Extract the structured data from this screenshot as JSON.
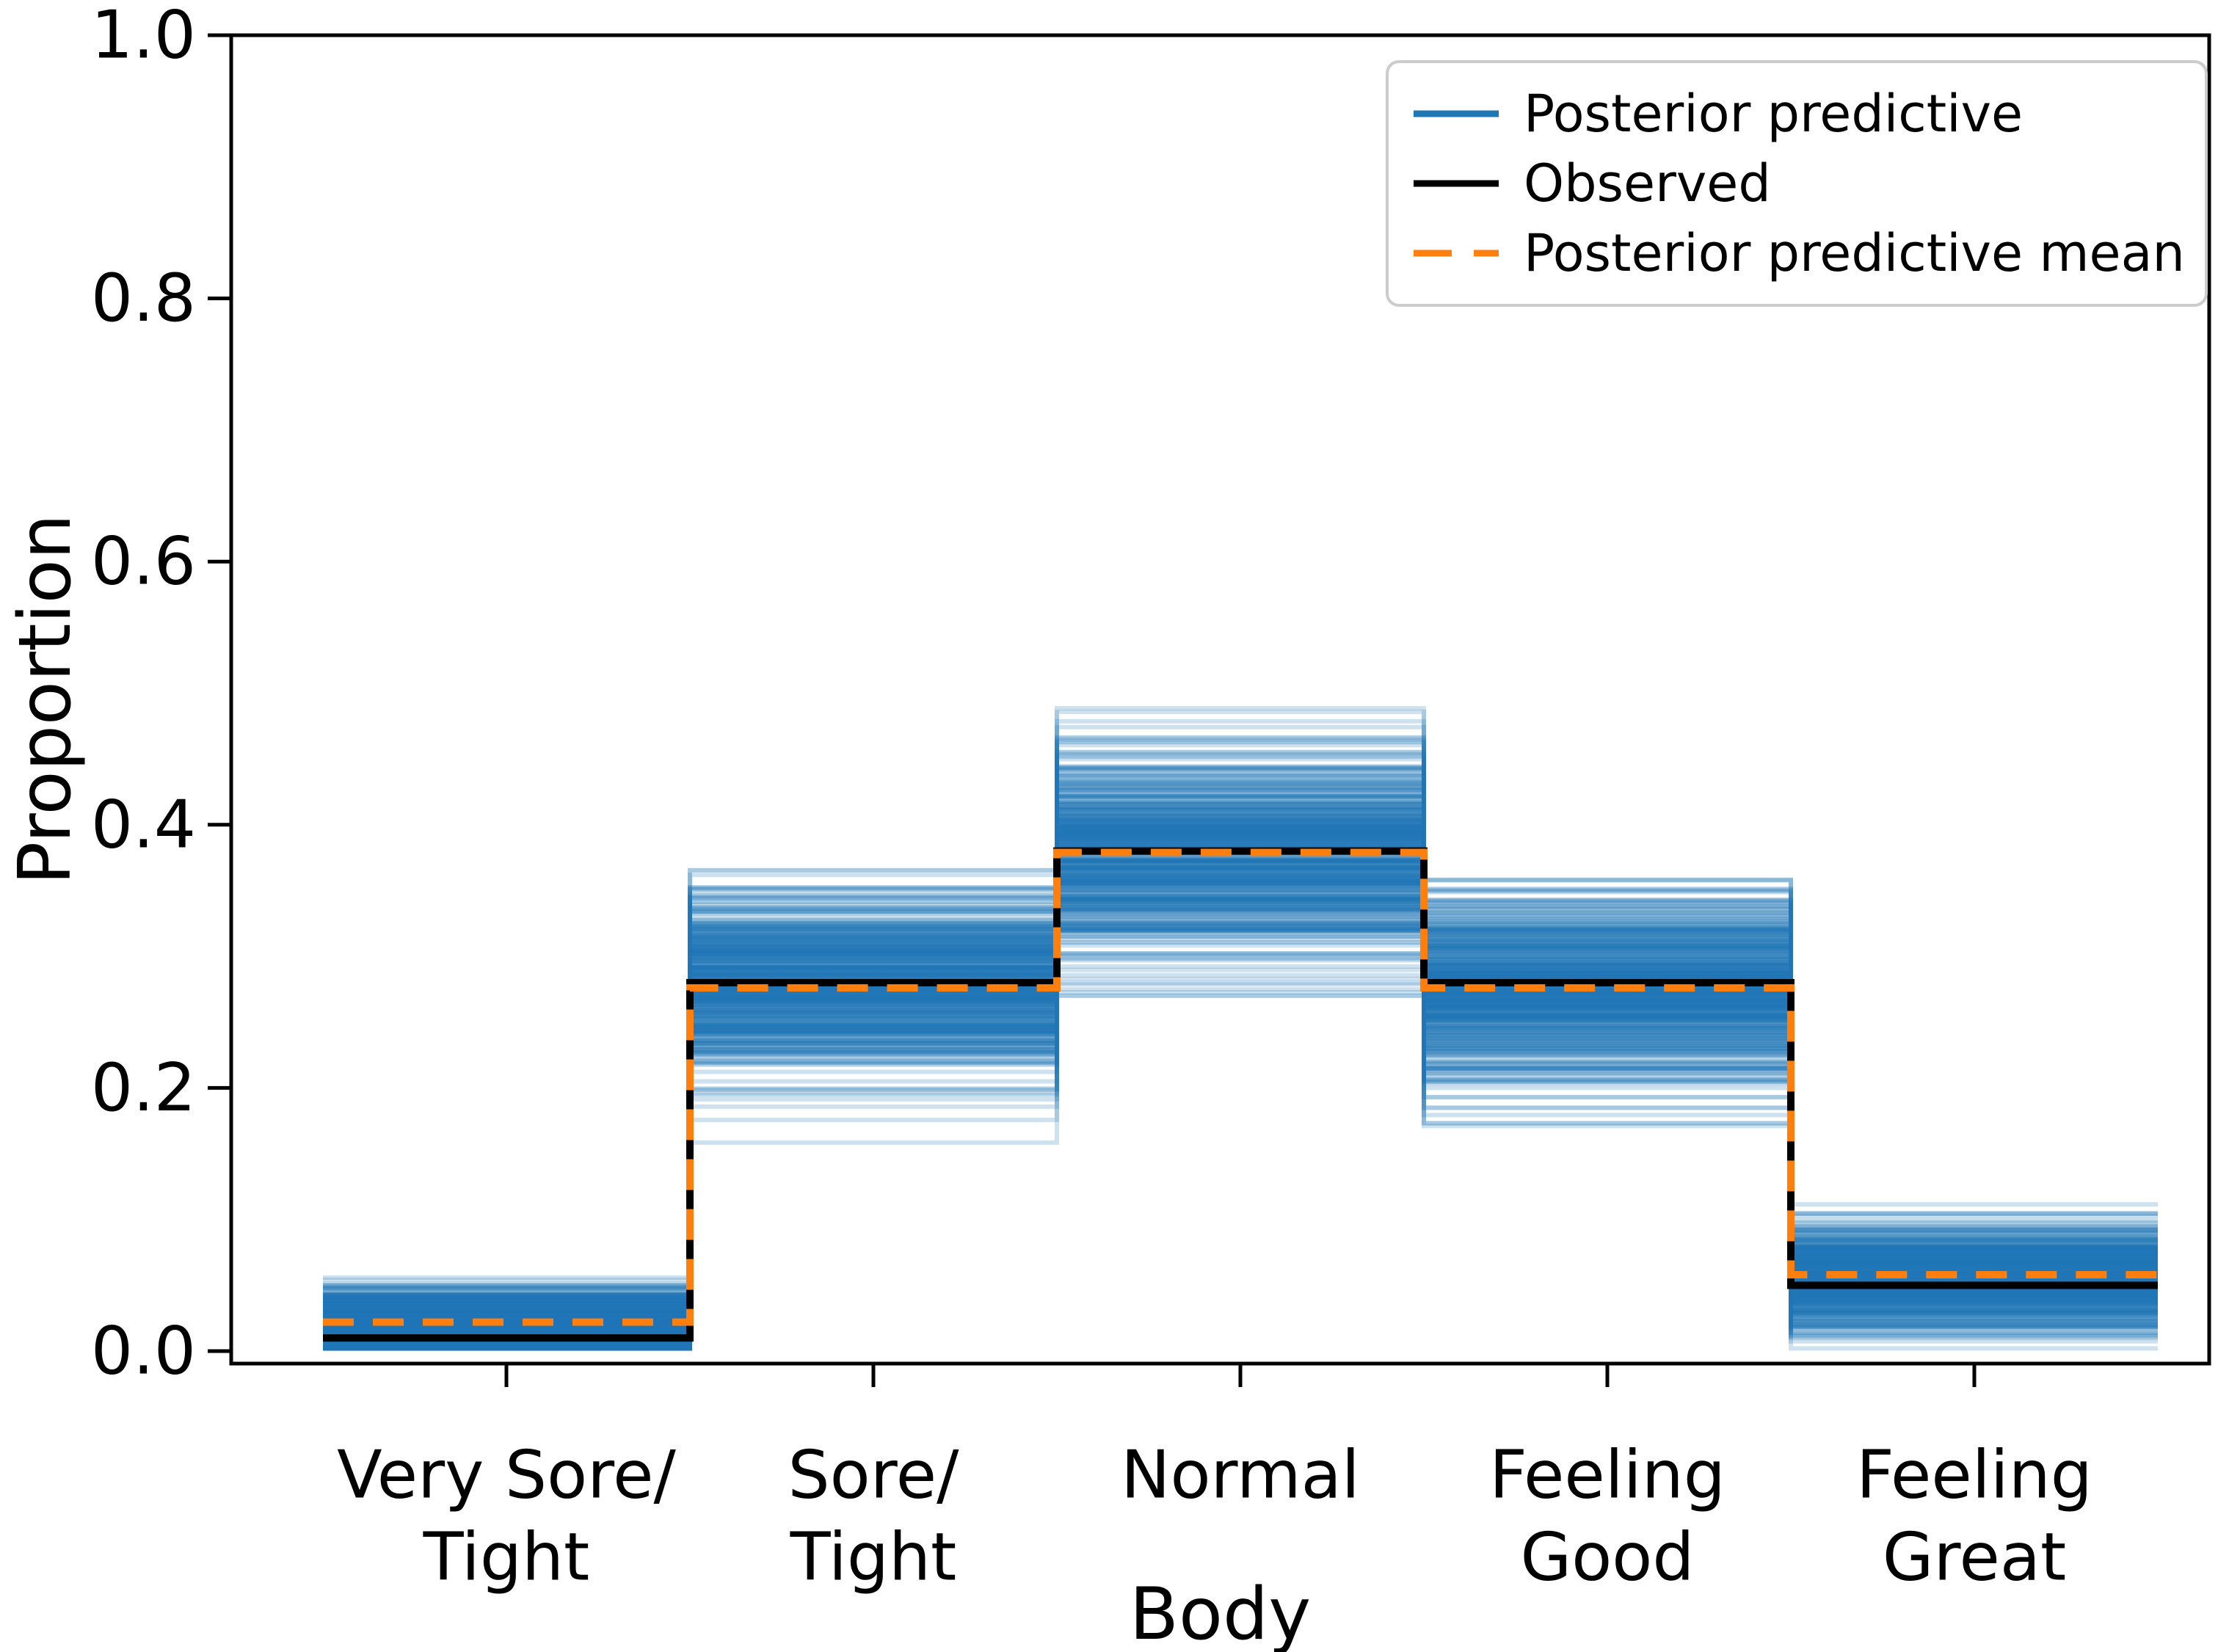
{
  "axes": {
    "xlabel": "Body",
    "ylabel": "Proportion",
    "ytick_labels": [
      "0.0",
      "0.2",
      "0.4",
      "0.6",
      "0.8",
      "1.0"
    ],
    "ytick_values": [
      0.0,
      0.2,
      0.4,
      0.6,
      0.8,
      1.0
    ],
    "ylim": [
      -0.0095,
      1.0
    ],
    "spine_color": "#000000",
    "background": "#ffffff"
  },
  "legend": {
    "position": "upper right",
    "items": [
      {
        "label": "Posterior predictive",
        "color": "#1f77b4",
        "dash": "solid"
      },
      {
        "label": "Observed",
        "color": "#000000",
        "dash": "solid"
      },
      {
        "label": "Posterior predictive mean",
        "color": "#ff7f0e",
        "dash": "dashed"
      }
    ]
  },
  "chart_data": {
    "type": "line",
    "subtype": "posterior-predictive-check-step-plot",
    "title": "",
    "xlabel": "Body",
    "ylabel": "Proportion",
    "ylim": [
      0,
      1
    ],
    "grid": false,
    "legend_position": "upper right",
    "categories": [
      [
        "Very Sore/",
        "Tight"
      ],
      [
        "Sore/",
        "Tight"
      ],
      [
        "Normal"
      ],
      [
        "Feeling",
        "Good"
      ],
      [
        "Feeling",
        "Great"
      ]
    ],
    "series": [
      {
        "name": "Observed",
        "values": [
          0.01,
          0.28,
          0.38,
          0.28,
          0.05
        ],
        "color": "#000000",
        "style": "solid"
      },
      {
        "name": "Posterior predictive mean",
        "values": [
          0.022,
          0.276,
          0.379,
          0.276,
          0.058
        ],
        "color": "#ff7f0e",
        "style": "dashed"
      },
      {
        "name": "Posterior predictive",
        "color": "#1f77b4",
        "style": "translucent-step-ensemble",
        "n_draws": 420,
        "band_mean": [
          0.022,
          0.276,
          0.379,
          0.276,
          0.058
        ],
        "band_sd": [
          0.013,
          0.035,
          0.04,
          0.035,
          0.021
        ],
        "band_lo": [
          0.003,
          0.18,
          0.27,
          0.18,
          0.025
        ],
        "band_hi": [
          0.065,
          0.39,
          0.51,
          0.39,
          0.135
        ]
      }
    ]
  }
}
